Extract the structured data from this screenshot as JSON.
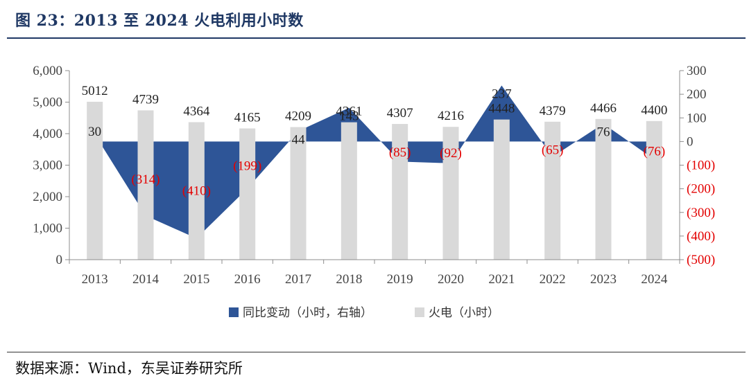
{
  "header": {
    "title": "图 23：2013 至 2024 火电利用小时数"
  },
  "footer": {
    "source": "数据来源：Wind，东吴证券研究所"
  },
  "colors": {
    "area": "#2e5597",
    "bar": "#d9d9d9",
    "negative_text": "#e30000",
    "title": "#1f3864"
  },
  "chart_data": {
    "type": "bar",
    "categories": [
      "2013",
      "2014",
      "2015",
      "2016",
      "2017",
      "2018",
      "2019",
      "2020",
      "2021",
      "2022",
      "2023",
      "2024"
    ],
    "series": [
      {
        "name": "火电（小时）",
        "type": "bar",
        "axis": "left",
        "values": [
          5012,
          4739,
          4364,
          4165,
          4209,
          4361,
          4307,
          4216,
          4448,
          4379,
          4466,
          4400
        ],
        "labels": [
          "5012",
          "4739",
          "4364",
          "4165",
          "4209",
          "4361",
          "4307",
          "4216",
          "4448",
          "4379",
          "4466",
          "4400"
        ]
      },
      {
        "name": "同比变动（小时，右轴）",
        "type": "area",
        "axis": "right",
        "values": [
          30,
          -314,
          -410,
          -199,
          44,
          143,
          -85,
          -92,
          237,
          -65,
          76,
          -76
        ],
        "labels": [
          "30",
          "(314)",
          "(410)",
          "(199)",
          "44",
          "143",
          "(85)",
          "(92)",
          "237",
          "(65)",
          "76",
          "(76)"
        ]
      }
    ],
    "left_axis": {
      "min": 0,
      "max": 6000,
      "ticks": [
        "0",
        "1,000",
        "2,000",
        "3,000",
        "4,000",
        "5,000",
        "6,000"
      ]
    },
    "right_axis": {
      "min": -500,
      "max": 300,
      "ticks": [
        "(500)",
        "(400)",
        "(300)",
        "(200)",
        "(100)",
        "0",
        "100",
        "200",
        "300"
      ]
    },
    "legend": [
      "同比变动（小时，右轴）",
      "火电（小时）"
    ],
    "legend_position": "bottom",
    "grid": false
  }
}
